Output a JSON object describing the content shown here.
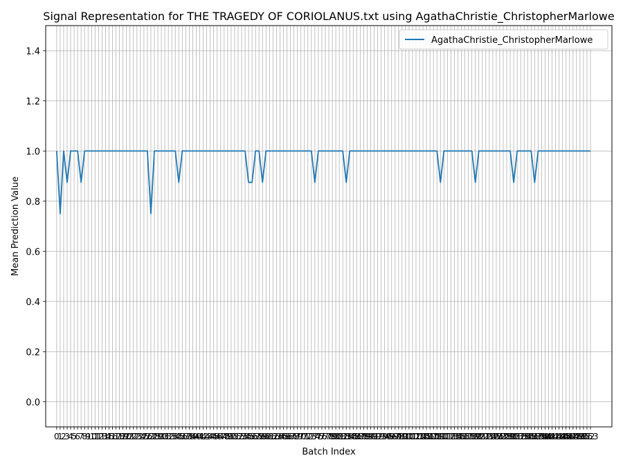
{
  "chart_data": {
    "type": "line",
    "title": "Signal Representation for THE TRAGEDY OF CORIOLANUS.txt using AgathaChristie_ChristopherMarlowe",
    "xlabel": "Batch Index",
    "ylabel": "Mean Prediction Value",
    "xlim": [
      -3.15,
      159.15
    ],
    "ylim": [
      -0.1,
      1.5
    ],
    "yticks": [
      0.0,
      0.2,
      0.4,
      0.6,
      0.8,
      1.0,
      1.2,
      1.4
    ],
    "ytick_labels": [
      "0.0",
      "0.2",
      "0.4",
      "0.6",
      "0.8",
      "1.0",
      "1.2",
      "1.4"
    ],
    "grid": true,
    "legend_position": "top-right",
    "series_color": "#1f77b4",
    "series": [
      {
        "name": "AgathaChristie_ChristopherMarlowe",
        "x": [
          0,
          1,
          2,
          3,
          4,
          5,
          6,
          7,
          8,
          9,
          10,
          11,
          12,
          13,
          14,
          15,
          16,
          17,
          18,
          19,
          20,
          21,
          22,
          23,
          24,
          25,
          26,
          27,
          28,
          29,
          30,
          31,
          32,
          33,
          34,
          35,
          36,
          37,
          38,
          39,
          40,
          41,
          42,
          43,
          44,
          45,
          46,
          47,
          48,
          49,
          50,
          51,
          52,
          53,
          54,
          55,
          56,
          57,
          58,
          59,
          60,
          61,
          62,
          63,
          64,
          65,
          66,
          67,
          68,
          69,
          70,
          71,
          72,
          73,
          74,
          75,
          76,
          77,
          78,
          79,
          80,
          81,
          82,
          83,
          84,
          85,
          86,
          87,
          88,
          89,
          90,
          91,
          92,
          93,
          94,
          95,
          96,
          97,
          98,
          99,
          100,
          101,
          102,
          103,
          104,
          105,
          106,
          107,
          108,
          109,
          110,
          111,
          112,
          113,
          114,
          115,
          116,
          117,
          118,
          119,
          120,
          121,
          122,
          123,
          124,
          125,
          126,
          127,
          128,
          129,
          130,
          131,
          132,
          133,
          134,
          135,
          136,
          137,
          138,
          139,
          140,
          141,
          142,
          143,
          144,
          145,
          146,
          147,
          148,
          149,
          150,
          151,
          152,
          153
        ],
        "values": [
          1.0,
          0.75,
          1.0,
          0.875,
          1.0,
          1.0,
          1.0,
          0.875,
          1.0,
          1.0,
          1.0,
          1.0,
          1.0,
          1.0,
          1.0,
          1.0,
          1.0,
          1.0,
          1.0,
          1.0,
          1.0,
          1.0,
          1.0,
          1.0,
          1.0,
          1.0,
          1.0,
          0.75,
          1.0,
          1.0,
          1.0,
          1.0,
          1.0,
          1.0,
          1.0,
          0.875,
          1.0,
          1.0,
          1.0,
          1.0,
          1.0,
          1.0,
          1.0,
          1.0,
          1.0,
          1.0,
          1.0,
          1.0,
          1.0,
          1.0,
          1.0,
          1.0,
          1.0,
          1.0,
          1.0,
          0.875,
          0.875,
          1.0,
          1.0,
          0.875,
          1.0,
          1.0,
          1.0,
          1.0,
          1.0,
          1.0,
          1.0,
          1.0,
          1.0,
          1.0,
          1.0,
          1.0,
          1.0,
          1.0,
          0.875,
          1.0,
          1.0,
          1.0,
          1.0,
          1.0,
          1.0,
          1.0,
          1.0,
          0.875,
          1.0,
          1.0,
          1.0,
          1.0,
          1.0,
          1.0,
          1.0,
          1.0,
          1.0,
          1.0,
          1.0,
          1.0,
          1.0,
          1.0,
          1.0,
          1.0,
          1.0,
          1.0,
          1.0,
          1.0,
          1.0,
          1.0,
          1.0,
          1.0,
          1.0,
          1.0,
          0.875,
          1.0,
          1.0,
          1.0,
          1.0,
          1.0,
          1.0,
          1.0,
          1.0,
          1.0,
          0.875,
          1.0,
          1.0,
          1.0,
          1.0,
          1.0,
          1.0,
          1.0,
          1.0,
          1.0,
          1.0,
          0.875,
          1.0,
          1.0,
          1.0,
          1.0,
          1.0,
          0.875,
          1.0,
          1.0,
          1.0,
          1.0,
          1.0,
          1.0,
          1.0,
          1.0,
          1.0,
          1.0,
          1.0,
          1.0,
          1.0,
          1.0,
          1.0,
          1.0
        ]
      }
    ]
  }
}
